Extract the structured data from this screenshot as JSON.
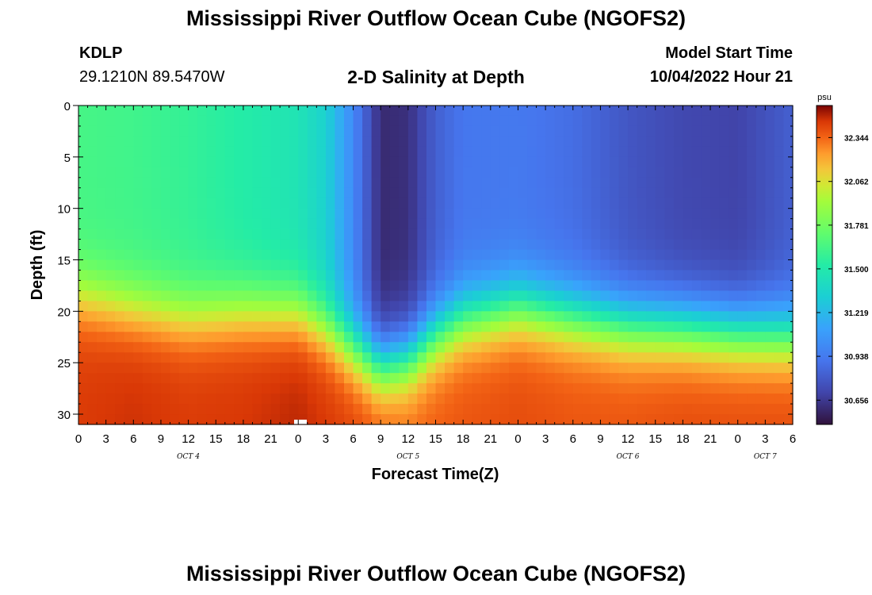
{
  "header": {
    "title": "Mississippi River Outflow Ocean Cube (NGOFS2)",
    "station": "KDLP",
    "coords": "29.1210N  89.5470W",
    "subtitle": "2-D Salinity at Depth",
    "model_start_label": "Model Start Time",
    "model_start_value": "10/04/2022 Hour 21"
  },
  "footer": {
    "title": "Mississippi River Outflow Ocean Cube (NGOFS2)"
  },
  "chart_data": {
    "type": "heatmap",
    "title": "2-D Salinity at Depth",
    "xlabel": "Forecast Time(Z)",
    "ylabel": "Depth (ft)",
    "x_range_hours": [
      0,
      78
    ],
    "y_range": [
      0,
      31
    ],
    "x_tick_labels": [
      "0",
      "3",
      "6",
      "9",
      "12",
      "15",
      "18",
      "21",
      "0",
      "3",
      "6",
      "9",
      "12",
      "15",
      "18",
      "21",
      "0",
      "3",
      "6",
      "9",
      "12",
      "15",
      "18",
      "21",
      "0",
      "3",
      "6"
    ],
    "day_labels": [
      {
        "label": "OCT 4",
        "hour": 12
      },
      {
        "label": "OCT 5",
        "hour": 36
      },
      {
        "label": "OCT 6",
        "hour": 60
      },
      {
        "label": "OCT 7",
        "hour": 75
      }
    ],
    "y_ticks": [
      0,
      5,
      10,
      15,
      20,
      25,
      30
    ],
    "colorbar": {
      "unit": "psu",
      "ticks": [
        32.344,
        32.062,
        31.781,
        31.5,
        31.219,
        30.938,
        30.656
      ],
      "range": [
        30.5,
        32.55
      ]
    },
    "salinity_profile": [
      {
        "hour": 0,
        "surface": 31.64,
        "bottom": 32.44,
        "interface_depth": 16
      },
      {
        "hour": 6,
        "surface": 31.62,
        "bottom": 32.46,
        "interface_depth": 17.2
      },
      {
        "hour": 12,
        "surface": 31.58,
        "bottom": 32.44,
        "interface_depth": 18.0
      },
      {
        "hour": 18,
        "surface": 31.52,
        "bottom": 32.45,
        "interface_depth": 17.5
      },
      {
        "hour": 24,
        "surface": 31.46,
        "bottom": 32.48,
        "interface_depth": 17.5
      },
      {
        "hour": 27,
        "surface": 31.34,
        "bottom": 32.45,
        "interface_depth": 19.0
      },
      {
        "hour": 30,
        "surface": 31.0,
        "bottom": 32.42,
        "interface_depth": 21.0
      },
      {
        "hour": 33,
        "surface": 30.6,
        "bottom": 32.38,
        "interface_depth": 22.7
      },
      {
        "hour": 36,
        "surface": 30.62,
        "bottom": 32.34,
        "interface_depth": 22.0
      },
      {
        "hour": 39,
        "surface": 30.82,
        "bottom": 32.36,
        "interface_depth": 19.8
      },
      {
        "hour": 42,
        "surface": 30.92,
        "bottom": 32.38,
        "interface_depth": 18.2
      },
      {
        "hour": 48,
        "surface": 30.93,
        "bottom": 32.4,
        "interface_depth": 17.0
      },
      {
        "hour": 54,
        "surface": 30.88,
        "bottom": 32.38,
        "interface_depth": 18.0
      },
      {
        "hour": 60,
        "surface": 30.78,
        "bottom": 32.38,
        "interface_depth": 18.8
      },
      {
        "hour": 66,
        "surface": 30.72,
        "bottom": 32.4,
        "interface_depth": 19.0
      },
      {
        "hour": 72,
        "surface": 30.7,
        "bottom": 32.4,
        "interface_depth": 19.5
      },
      {
        "hour": 78,
        "surface": 30.82,
        "bottom": 32.4,
        "interface_depth": 19.8
      }
    ]
  }
}
